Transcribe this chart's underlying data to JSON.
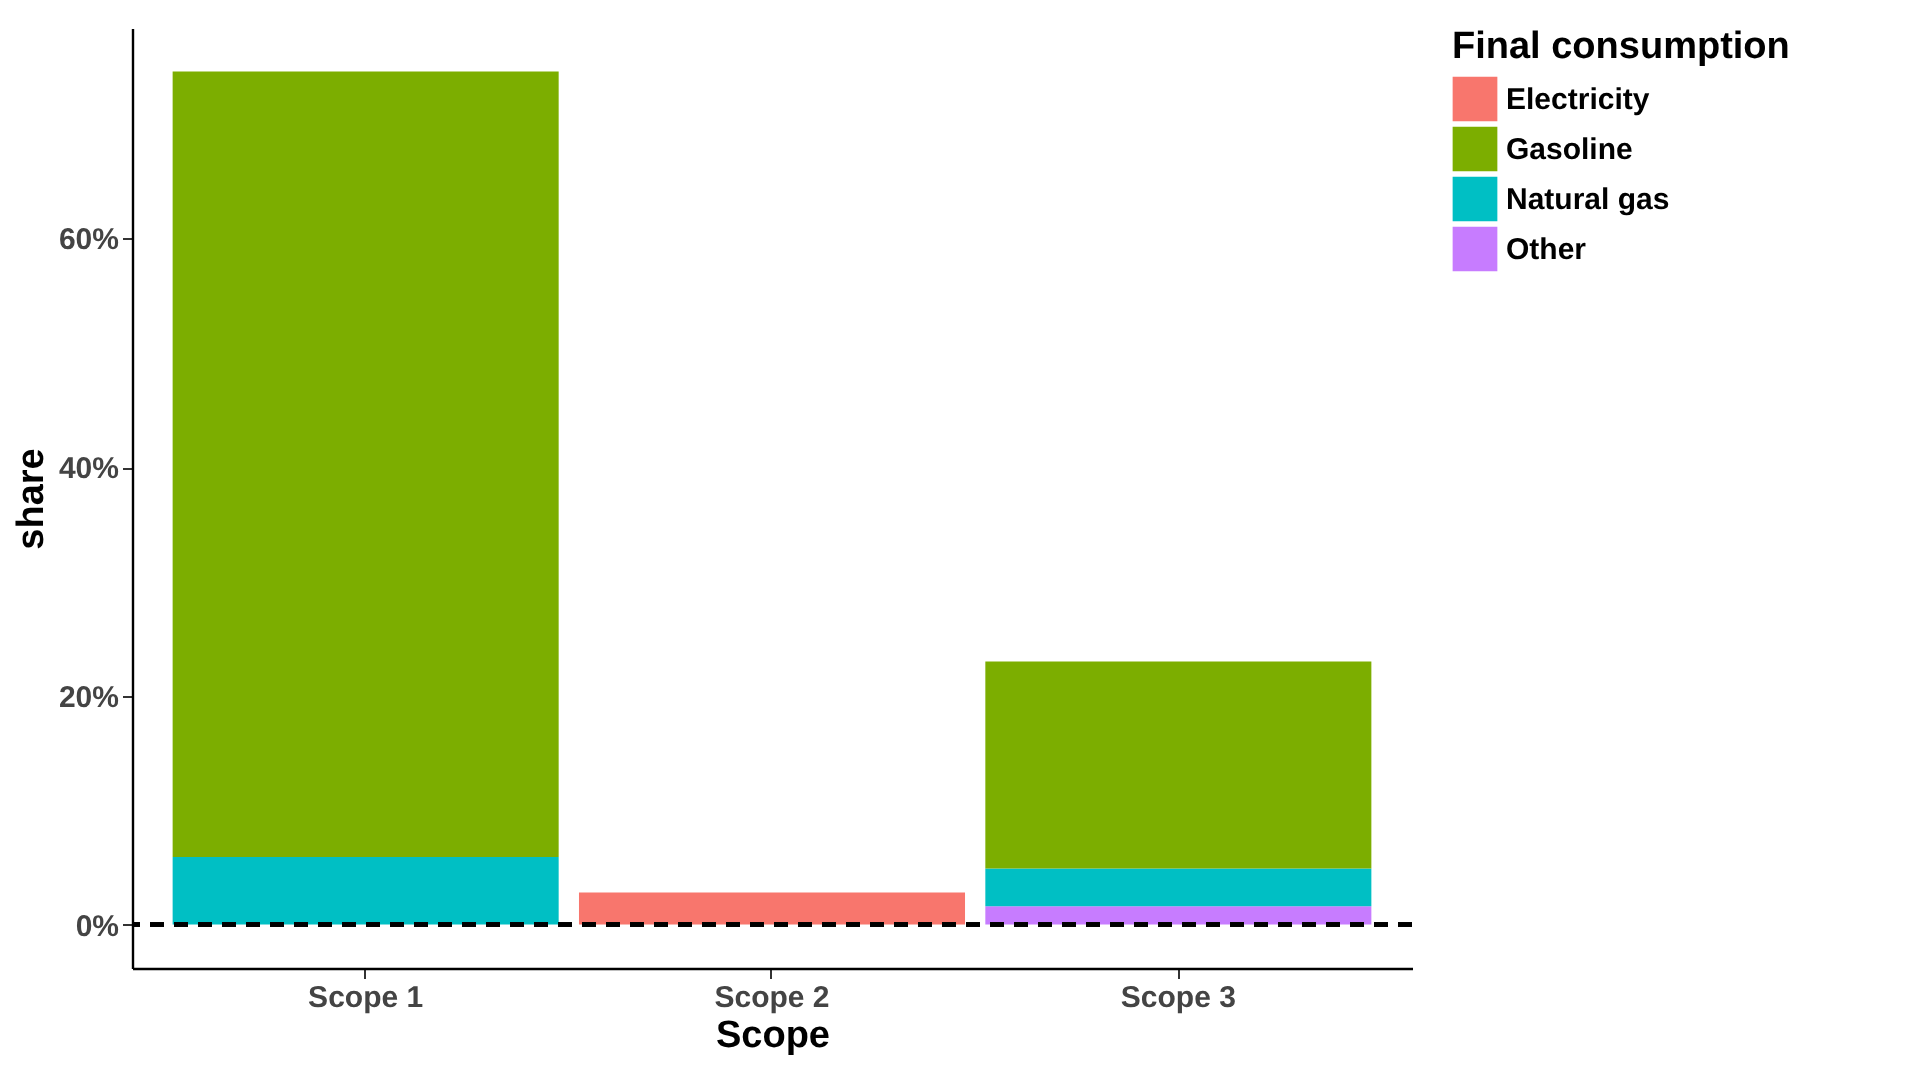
{
  "chart_data": {
    "type": "bar",
    "stacked": true,
    "xlabel": "Scope",
    "ylabel": "share",
    "legend_title": "Final consumption",
    "categories": [
      "Scope 1",
      "Scope 2",
      "Scope 3"
    ],
    "series": [
      {
        "name": "Other",
        "color": "#c77cff",
        "values": [
          null,
          null,
          1.6
        ]
      },
      {
        "name": "Natural gas",
        "color": "#00bfc4",
        "values": [
          5.9,
          null,
          3.3
        ]
      },
      {
        "name": "Gasoline",
        "color": "#7cae00",
        "values": [
          68.7,
          null,
          18.1
        ]
      },
      {
        "name": "Electricity",
        "color": "#f8766d",
        "values": [
          null,
          2.8,
          null
        ]
      }
    ],
    "ylim": [
      -3.8,
      78.4
    ],
    "yticks": [
      {
        "value": 0,
        "label": "0%"
      },
      {
        "value": 20,
        "label": "20%"
      },
      {
        "value": 40,
        "label": "40%"
      },
      {
        "value": 60,
        "label": "60%"
      }
    ],
    "ref_lines": [
      {
        "axis": "y",
        "value": 0,
        "color": "#000000",
        "line_style": "dashed"
      }
    ],
    "grid": false,
    "legend": "right"
  }
}
